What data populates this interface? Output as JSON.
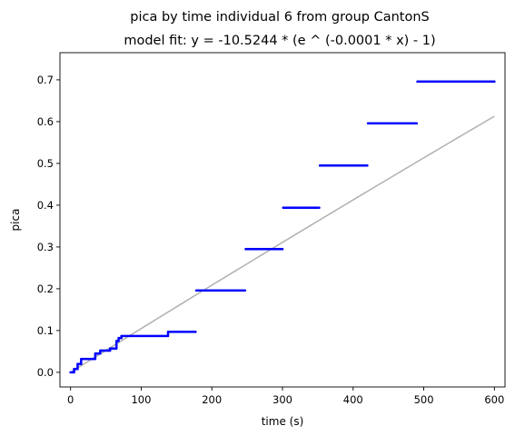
{
  "chart_data": {
    "type": "scatter",
    "title": "pica by time individual 6 from group CantonS",
    "subtitle": "model fit: y = -10.5244 * (e ^ (-0.0001 * x) - 1)",
    "xlabel": "time (s)",
    "ylabel": "pica",
    "xlim": [
      -15,
      615
    ],
    "ylim": [
      -0.035,
      0.765
    ],
    "xticks": [
      0,
      100,
      200,
      300,
      400,
      500,
      600
    ],
    "yticks": [
      0.0,
      0.1,
      0.2,
      0.3,
      0.4,
      0.5,
      0.6,
      0.7
    ],
    "xtick_labels": [
      "0",
      "100",
      "200",
      "300",
      "400",
      "500",
      "600"
    ],
    "ytick_labels": [
      "0.0",
      "0.1",
      "0.2",
      "0.3",
      "0.4",
      "0.5",
      "0.6",
      "0.7"
    ],
    "grid": false,
    "colors": {
      "points": "#0000ff",
      "fit": "#b0b0b0"
    },
    "data_segments": [
      {
        "x_start": 0,
        "x_end": 5,
        "y": 0.0
      },
      {
        "x_start": 5,
        "x_end": 10,
        "y": 0.008
      },
      {
        "x_start": 10,
        "x_end": 15,
        "y": 0.02
      },
      {
        "x_start": 15,
        "x_end": 35,
        "y": 0.032
      },
      {
        "x_start": 35,
        "x_end": 42,
        "y": 0.045
      },
      {
        "x_start": 42,
        "x_end": 56,
        "y": 0.052
      },
      {
        "x_start": 56,
        "x_end": 65,
        "y": 0.057
      },
      {
        "x_start": 65,
        "x_end": 68,
        "y": 0.075
      },
      {
        "x_start": 68,
        "x_end": 72,
        "y": 0.082
      },
      {
        "x_start": 72,
        "x_end": 138,
        "y": 0.087
      },
      {
        "x_start": 138,
        "x_end": 177,
        "y": 0.097
      },
      {
        "x_start": 178,
        "x_end": 247,
        "y": 0.196
      },
      {
        "x_start": 248,
        "x_end": 300,
        "y": 0.295
      },
      {
        "x_start": 301,
        "x_end": 352,
        "y": 0.394
      },
      {
        "x_start": 353,
        "x_end": 420,
        "y": 0.495
      },
      {
        "x_start": 421,
        "x_end": 490,
        "y": 0.596
      },
      {
        "x_start": 491,
        "x_end": 600,
        "y": 0.696
      }
    ],
    "fit": {
      "a": -10.5244,
      "b": -0.0001,
      "x_start": 0,
      "x_end": 600
    }
  }
}
